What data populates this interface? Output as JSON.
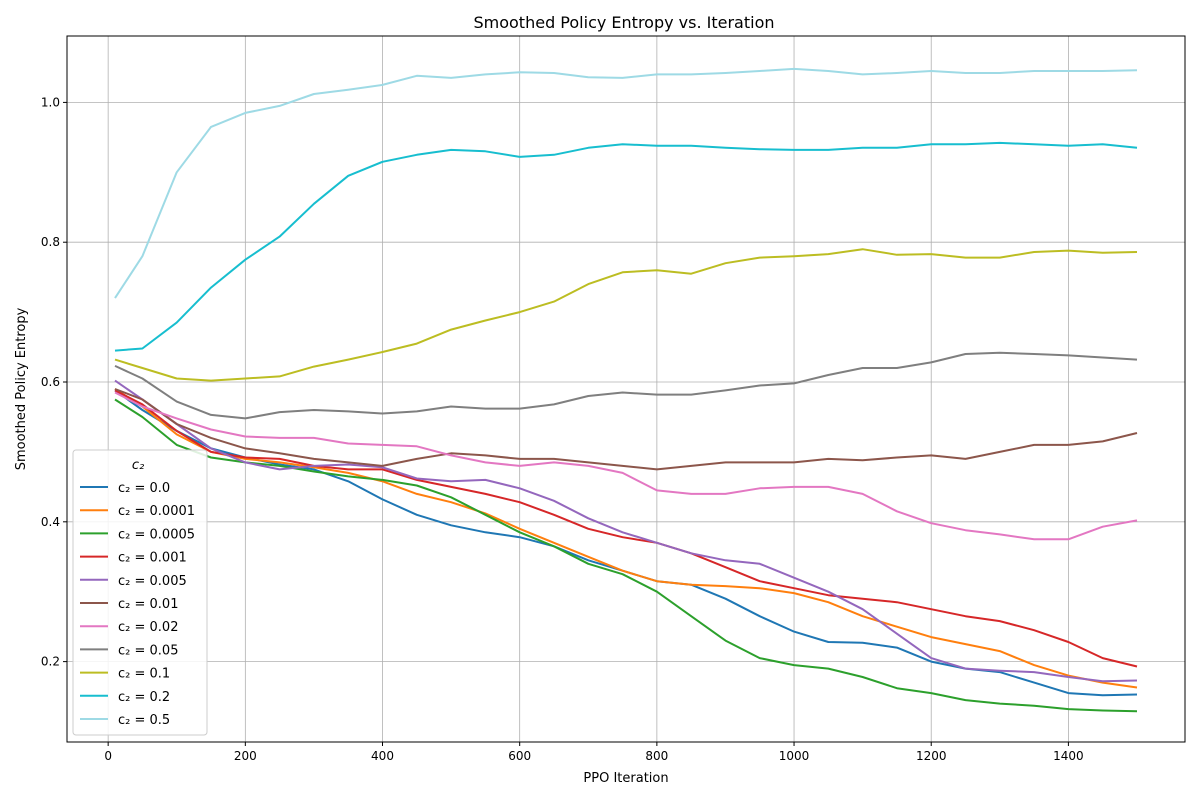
{
  "chart_data": {
    "type": "line",
    "title": "Smoothed Policy Entropy vs. Iteration",
    "xlabel": "PPO Iteration",
    "ylabel": "Smoothed Policy Entropy",
    "xlim": [
      -60,
      1570
    ],
    "ylim": [
      0.085,
      1.095
    ],
    "xticks": [
      0,
      200,
      400,
      600,
      800,
      1000,
      1200,
      1400
    ],
    "yticks": [
      0.2,
      0.4,
      0.6,
      0.8,
      1.0
    ],
    "xtick_labels": [
      "0",
      "200",
      "400",
      "600",
      "800",
      "1000",
      "1200",
      "1400"
    ],
    "ytick_labels": [
      "0.2",
      "0.4",
      "0.6",
      "0.8",
      "1.0"
    ],
    "grid": true,
    "legend": {
      "title": "c₂",
      "placement": "lower-left"
    },
    "x": [
      10,
      50,
      100,
      150,
      200,
      250,
      300,
      350,
      400,
      450,
      500,
      550,
      600,
      650,
      700,
      750,
      800,
      850,
      900,
      950,
      1000,
      1050,
      1100,
      1150,
      1200,
      1250,
      1300,
      1350,
      1400,
      1450,
      1500
    ],
    "series": [
      {
        "name": "c₂ = 0.0",
        "color": "#1f77b4",
        "values": [
          0.588,
          0.56,
          0.53,
          0.505,
          0.492,
          0.482,
          0.475,
          0.458,
          0.432,
          0.41,
          0.395,
          0.385,
          0.378,
          0.365,
          0.345,
          0.33,
          0.315,
          0.31,
          0.29,
          0.265,
          0.243,
          0.228,
          0.227,
          0.22,
          0.2,
          0.19,
          0.185,
          0.17,
          0.155,
          0.152,
          0.153
        ]
      },
      {
        "name": "c₂ = 0.0001",
        "color": "#ff7f0e",
        "values": [
          0.59,
          0.565,
          0.525,
          0.5,
          0.49,
          0.485,
          0.478,
          0.47,
          0.458,
          0.44,
          0.428,
          0.412,
          0.39,
          0.37,
          0.35,
          0.33,
          0.315,
          0.31,
          0.308,
          0.305,
          0.298,
          0.285,
          0.265,
          0.25,
          0.235,
          0.225,
          0.215,
          0.195,
          0.18,
          0.17,
          0.163
        ]
      },
      {
        "name": "c₂ = 0.0005",
        "color": "#2ca02c",
        "values": [
          0.575,
          0.55,
          0.51,
          0.492,
          0.485,
          0.48,
          0.472,
          0.465,
          0.46,
          0.452,
          0.435,
          0.41,
          0.385,
          0.365,
          0.34,
          0.325,
          0.3,
          0.265,
          0.23,
          0.205,
          0.195,
          0.19,
          0.178,
          0.162,
          0.155,
          0.145,
          0.14,
          0.137,
          0.132,
          0.13,
          0.129
        ]
      },
      {
        "name": "c₂ = 0.001",
        "color": "#d62728",
        "values": [
          0.588,
          0.568,
          0.53,
          0.5,
          0.492,
          0.49,
          0.48,
          0.475,
          0.475,
          0.46,
          0.45,
          0.44,
          0.428,
          0.41,
          0.39,
          0.378,
          0.37,
          0.355,
          0.335,
          0.315,
          0.305,
          0.295,
          0.29,
          0.285,
          0.275,
          0.265,
          0.258,
          0.245,
          0.228,
          0.205,
          0.193
        ]
      },
      {
        "name": "c₂ = 0.005",
        "color": "#9467bd",
        "values": [
          0.602,
          0.575,
          0.54,
          0.505,
          0.485,
          0.475,
          0.48,
          0.482,
          0.478,
          0.462,
          0.458,
          0.46,
          0.448,
          0.43,
          0.405,
          0.385,
          0.37,
          0.355,
          0.345,
          0.34,
          0.32,
          0.3,
          0.275,
          0.24,
          0.205,
          0.19,
          0.187,
          0.185,
          0.178,
          0.172,
          0.173
        ]
      },
      {
        "name": "c₂ = 0.01",
        "color": "#8c564b",
        "values": [
          0.59,
          0.575,
          0.54,
          0.52,
          0.505,
          0.498,
          0.49,
          0.485,
          0.48,
          0.49,
          0.498,
          0.495,
          0.49,
          0.49,
          0.485,
          0.48,
          0.475,
          0.48,
          0.485,
          0.485,
          0.485,
          0.49,
          0.488,
          0.492,
          0.495,
          0.49,
          0.5,
          0.51,
          0.51,
          0.515,
          0.527
        ]
      },
      {
        "name": "c₂ = 0.02",
        "color": "#e377c2",
        "values": [
          0.585,
          0.565,
          0.548,
          0.532,
          0.522,
          0.52,
          0.52,
          0.512,
          0.51,
          0.508,
          0.495,
          0.485,
          0.48,
          0.485,
          0.48,
          0.47,
          0.445,
          0.44,
          0.44,
          0.448,
          0.45,
          0.45,
          0.44,
          0.415,
          0.398,
          0.388,
          0.382,
          0.375,
          0.375,
          0.393,
          0.402
        ]
      },
      {
        "name": "c₂ = 0.05",
        "color": "#7f7f7f",
        "values": [
          0.623,
          0.605,
          0.572,
          0.553,
          0.548,
          0.557,
          0.56,
          0.558,
          0.555,
          0.558,
          0.565,
          0.562,
          0.562,
          0.568,
          0.58,
          0.585,
          0.582,
          0.582,
          0.588,
          0.595,
          0.598,
          0.61,
          0.62,
          0.62,
          0.628,
          0.64,
          0.642,
          0.64,
          0.638,
          0.635,
          0.632
        ]
      },
      {
        "name": "c₂ = 0.1",
        "color": "#bcbd22",
        "values": [
          0.632,
          0.62,
          0.605,
          0.602,
          0.605,
          0.608,
          0.622,
          0.632,
          0.643,
          0.655,
          0.675,
          0.688,
          0.7,
          0.715,
          0.74,
          0.757,
          0.76,
          0.755,
          0.77,
          0.778,
          0.78,
          0.783,
          0.79,
          0.782,
          0.783,
          0.778,
          0.778,
          0.786,
          0.788,
          0.785,
          0.786
        ]
      },
      {
        "name": "c₂ = 0.2",
        "color": "#17becf",
        "values": [
          0.645,
          0.648,
          0.685,
          0.735,
          0.775,
          0.808,
          0.855,
          0.895,
          0.915,
          0.925,
          0.932,
          0.93,
          0.922,
          0.925,
          0.935,
          0.94,
          0.938,
          0.938,
          0.935,
          0.933,
          0.932,
          0.932,
          0.935,
          0.935,
          0.94,
          0.94,
          0.942,
          0.94,
          0.938,
          0.94,
          0.935
        ]
      },
      {
        "name": "c₂ = 0.5",
        "color": "#9edae5",
        "values": [
          0.72,
          0.78,
          0.9,
          0.965,
          0.985,
          0.995,
          1.012,
          1.018,
          1.025,
          1.038,
          1.035,
          1.04,
          1.043,
          1.042,
          1.036,
          1.035,
          1.04,
          1.04,
          1.042,
          1.045,
          1.048,
          1.045,
          1.04,
          1.042,
          1.045,
          1.042,
          1.042,
          1.045,
          1.045,
          1.045,
          1.046
        ]
      }
    ]
  }
}
